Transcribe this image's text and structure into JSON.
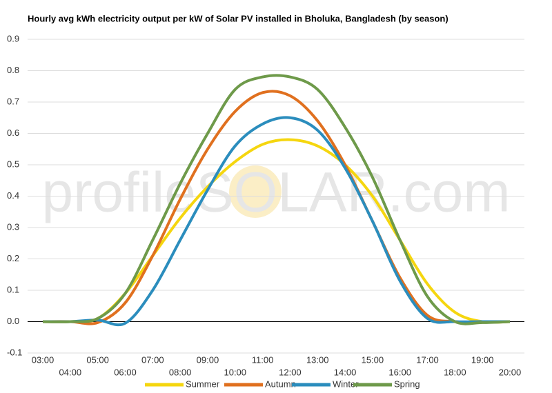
{
  "chart_data": {
    "type": "line",
    "title": "Hourly avg kWh electricity output per kW of Solar PV installed in Bholuka, Bangladesh (by season)",
    "watermark": "profileSOLAR.com",
    "categories": [
      "03:00",
      "04:00",
      "05:00",
      "06:00",
      "07:00",
      "08:00",
      "09:00",
      "10:00",
      "11:00",
      "12:00",
      "13:00",
      "14:00",
      "15:00",
      "16:00",
      "17:00",
      "18:00",
      "19:00",
      "20:00"
    ],
    "series": [
      {
        "name": "Summer",
        "color": "#f5d60f",
        "values": [
          0,
          0,
          0.01,
          0.09,
          0.21,
          0.33,
          0.43,
          0.51,
          0.565,
          0.58,
          0.56,
          0.5,
          0.4,
          0.26,
          0.12,
          0.03,
          0,
          0
        ]
      },
      {
        "name": "Autumn",
        "color": "#e0701f",
        "values": [
          0,
          0,
          -0.003,
          0.06,
          0.21,
          0.39,
          0.55,
          0.67,
          0.73,
          0.72,
          0.64,
          0.5,
          0.32,
          0.14,
          0.02,
          0,
          0,
          0
        ]
      },
      {
        "name": "Winter",
        "color": "#2b8dbd",
        "values": [
          0,
          0,
          0.005,
          -0.005,
          0.1,
          0.26,
          0.42,
          0.56,
          0.63,
          0.65,
          0.61,
          0.49,
          0.32,
          0.13,
          0.01,
          0,
          0,
          0
        ]
      },
      {
        "name": "Spring",
        "color": "#6e9a4a",
        "values": [
          0,
          0,
          0.01,
          0.09,
          0.26,
          0.44,
          0.6,
          0.74,
          0.78,
          0.78,
          0.74,
          0.62,
          0.46,
          0.26,
          0.08,
          0,
          -0.003,
          0
        ]
      }
    ],
    "ylim": [
      -0.1,
      0.9
    ],
    "yticks": [
      -0.1,
      {
        "value": 0,
        "label": "0.0"
      },
      0.1,
      0.2,
      0.3,
      0.4,
      0.5,
      0.6,
      0.7,
      0.8,
      0.9
    ],
    "grid": true,
    "legend": "bottom"
  }
}
